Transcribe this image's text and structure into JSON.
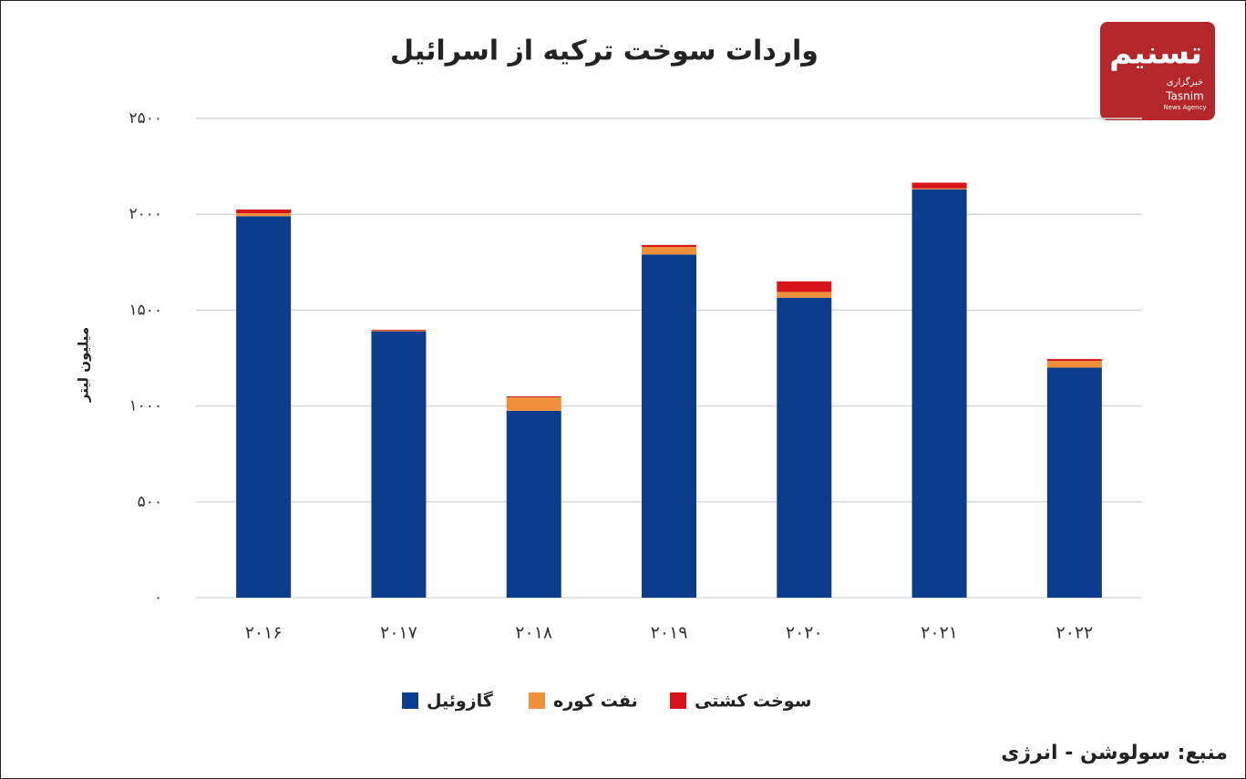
{
  "chart_data": {
    "type": "stacked-bar",
    "title": "واردات سوخت ترکیه از اسرائیل",
    "y_label": "میلیون لیتر",
    "categories": [
      "۲۰۱۶",
      "۲۰۱۷",
      "۲۰۱۸",
      "۲۰۱۹",
      "۲۰۲۰",
      "۲۰۲۱",
      "۲۰۲۲"
    ],
    "series": [
      {
        "name": "گازوئیل",
        "color": "#0b3d8c",
        "values": [
          1990,
          1390,
          975,
          1790,
          1565,
          2130,
          1200
        ]
      },
      {
        "name": "نفت کوره",
        "color": "#f0903a",
        "values": [
          15,
          5,
          70,
          40,
          30,
          5,
          35
        ]
      },
      {
        "name": "سوخت کشتی",
        "color": "#d7141a",
        "values": [
          20,
          3,
          5,
          10,
          55,
          30,
          10
        ]
      }
    ],
    "ylim": [
      0,
      2500
    ],
    "yticks": [
      {
        "value": 0,
        "label": "۰"
      },
      {
        "value": 500,
        "label": "۵۰۰"
      },
      {
        "value": 1000,
        "label": "۱۰۰۰"
      },
      {
        "value": 1500,
        "label": "۱۵۰۰"
      },
      {
        "value": 2000,
        "label": "۲۰۰۰"
      },
      {
        "value": 2500,
        "label": "۲۵۰۰"
      }
    ],
    "grid": true,
    "legend": "bottom"
  },
  "logo": {
    "name_fa": "تسنیم",
    "agency_fa": "خبرگزاری",
    "name_en": "Tasnim",
    "agency_en": "News Agency"
  },
  "source": "منبع: سولوشن - انرژی"
}
